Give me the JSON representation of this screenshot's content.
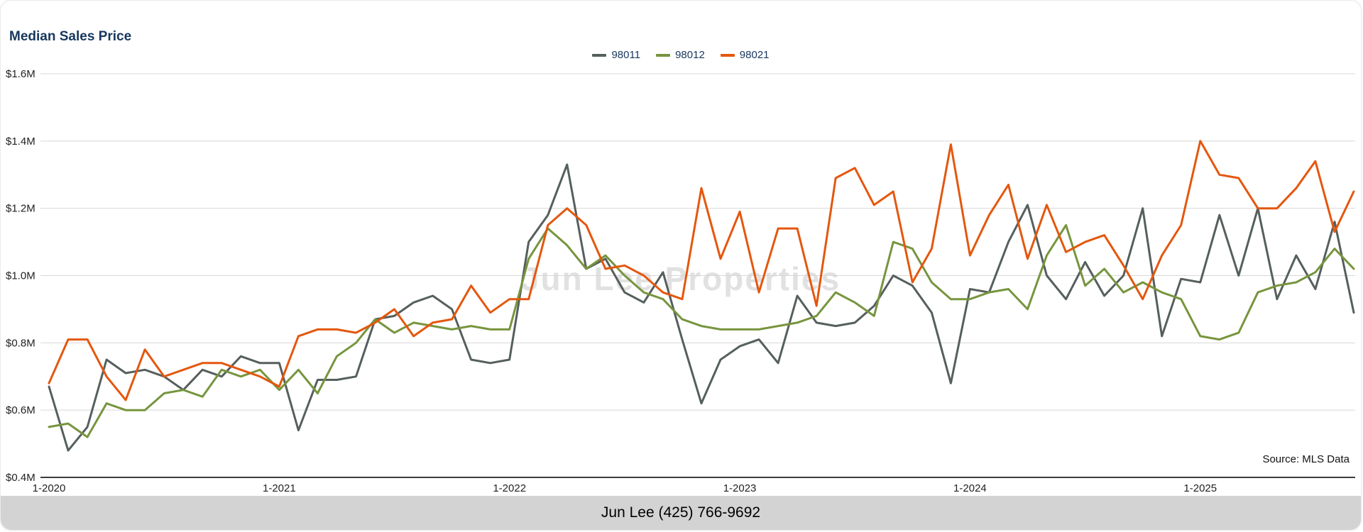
{
  "chart": {
    "title": "Median Sales Price",
    "watermark": "Jun Lee Properties",
    "source": "Source: MLS Data"
  },
  "footer": {
    "contact": "Jun Lee (425) 766-9692"
  },
  "colors": {
    "title_navy": "#17375d",
    "gridline": "#d7d7d7",
    "axis": "#3c3c3c",
    "footer_bg": "#d3d3d3",
    "series_98011": "#555f5e",
    "series_98012": "#77953e",
    "series_98021": "#e4570e"
  },
  "chart_data": {
    "type": "line",
    "title": "Median Sales Price",
    "xlabel": "",
    "ylabel": "",
    "ylim": [
      0.4,
      1.6
    ],
    "grid": true,
    "legend_position": "top",
    "y_ticks": [
      {
        "value": 0.4,
        "label": "$0.4M"
      },
      {
        "value": 0.6,
        "label": "$0.6M"
      },
      {
        "value": 0.8,
        "label": "$0.8M"
      },
      {
        "value": 1.0,
        "label": "$1.0M"
      },
      {
        "value": 1.2,
        "label": "$1.2M"
      },
      {
        "value": 1.4,
        "label": "$1.4M"
      },
      {
        "value": 1.6,
        "label": "$1.6M"
      }
    ],
    "x_ticks": [
      {
        "index": 0,
        "label": "1-2020"
      },
      {
        "index": 12,
        "label": "1-2021"
      },
      {
        "index": 24,
        "label": "1-2022"
      },
      {
        "index": 36,
        "label": "1-2023"
      },
      {
        "index": 48,
        "label": "1-2024"
      },
      {
        "index": 60,
        "label": "1-2025"
      }
    ],
    "categories": [
      "1-2020",
      "2-2020",
      "3-2020",
      "4-2020",
      "5-2020",
      "6-2020",
      "7-2020",
      "8-2020",
      "9-2020",
      "10-2020",
      "11-2020",
      "12-2020",
      "1-2021",
      "2-2021",
      "3-2021",
      "4-2021",
      "5-2021",
      "6-2021",
      "7-2021",
      "8-2021",
      "9-2021",
      "10-2021",
      "11-2021",
      "12-2021",
      "1-2022",
      "2-2022",
      "3-2022",
      "4-2022",
      "5-2022",
      "6-2022",
      "7-2022",
      "8-2022",
      "9-2022",
      "10-2022",
      "11-2022",
      "12-2022",
      "1-2023",
      "2-2023",
      "3-2023",
      "4-2023",
      "5-2023",
      "6-2023",
      "7-2023",
      "8-2023",
      "9-2023",
      "10-2023",
      "11-2023",
      "12-2023",
      "1-2024",
      "2-2024",
      "3-2024",
      "4-2024",
      "5-2024",
      "6-2024",
      "7-2024",
      "8-2024",
      "9-2024",
      "10-2024",
      "11-2024",
      "12-2024",
      "1-2025",
      "2-2025",
      "3-2025",
      "4-2025",
      "5-2025",
      "6-2025",
      "7-2025",
      "8-2025",
      "9-2025"
    ],
    "series": [
      {
        "name": "98011",
        "color": "#555f5e",
        "values": [
          0.67,
          0.48,
          0.55,
          0.75,
          0.71,
          0.72,
          0.7,
          0.66,
          0.72,
          0.7,
          0.76,
          0.74,
          0.74,
          0.54,
          0.69,
          0.69,
          0.7,
          0.87,
          0.88,
          0.92,
          0.94,
          0.9,
          0.75,
          0.74,
          0.75,
          1.1,
          1.18,
          1.33,
          1.02,
          1.05,
          0.95,
          0.92,
          1.01,
          0.81,
          0.62,
          0.75,
          0.79,
          0.81,
          0.74,
          0.94,
          0.86,
          0.85,
          0.86,
          0.91,
          1.0,
          0.97,
          0.89,
          0.68,
          0.96,
          0.95,
          1.1,
          1.21,
          1.0,
          0.93,
          1.04,
          0.94,
          1.0,
          1.2,
          0.82,
          0.99,
          0.98,
          1.18,
          1.0,
          1.2,
          0.93,
          1.06,
          0.96,
          1.16,
          0.89
        ]
      },
      {
        "name": "98012",
        "color": "#77953e",
        "values": [
          0.55,
          0.56,
          0.52,
          0.62,
          0.6,
          0.6,
          0.65,
          0.66,
          0.64,
          0.72,
          0.7,
          0.72,
          0.66,
          0.72,
          0.65,
          0.76,
          0.8,
          0.87,
          0.83,
          0.86,
          0.85,
          0.84,
          0.85,
          0.84,
          0.84,
          1.05,
          1.14,
          1.09,
          1.02,
          1.06,
          1.0,
          0.95,
          0.93,
          0.87,
          0.85,
          0.84,
          0.84,
          0.84,
          0.85,
          0.86,
          0.88,
          0.95,
          0.92,
          0.88,
          1.1,
          1.08,
          0.98,
          0.93,
          0.93,
          0.95,
          0.96,
          0.9,
          1.06,
          1.15,
          0.97,
          1.02,
          0.95,
          0.98,
          0.95,
          0.93,
          0.82,
          0.81,
          0.83,
          0.95,
          0.97,
          0.98,
          1.01,
          1.08,
          1.02
        ]
      },
      {
        "name": "98021",
        "color": "#e4570e",
        "values": [
          0.68,
          0.81,
          0.81,
          0.7,
          0.63,
          0.78,
          0.7,
          0.72,
          0.74,
          0.74,
          0.72,
          0.7,
          0.67,
          0.82,
          0.84,
          0.84,
          0.83,
          0.86,
          0.9,
          0.82,
          0.86,
          0.87,
          0.97,
          0.89,
          0.93,
          0.93,
          1.15,
          1.2,
          1.15,
          1.02,
          1.03,
          1.0,
          0.95,
          0.93,
          1.26,
          1.05,
          1.19,
          0.95,
          1.14,
          1.14,
          0.91,
          1.29,
          1.32,
          1.21,
          1.25,
          0.98,
          1.08,
          1.39,
          1.06,
          1.18,
          1.27,
          1.05,
          1.21,
          1.07,
          1.1,
          1.12,
          1.03,
          0.93,
          1.06,
          1.15,
          1.4,
          1.3,
          1.29,
          1.2,
          1.2,
          1.26,
          1.34,
          1.13,
          1.25
        ]
      }
    ]
  }
}
